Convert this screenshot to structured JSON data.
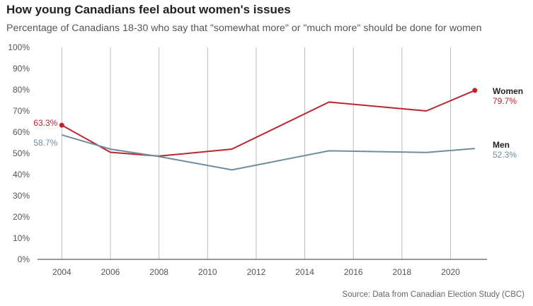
{
  "title": "How young Canadians feel about women's issues",
  "subtitle": "Percentage of Canadians 18-30 who say that \"somewhat more\" or \"much more\" should be done for women",
  "source": "Source: Data from Canadian Election Study (CBC)",
  "colors": {
    "women": "#b8262f",
    "men": "#6f8e9c",
    "grid": "#bbbbbb",
    "axis": "#333333"
  },
  "chart_data": {
    "type": "line",
    "title": "How young Canadians feel about women's issues",
    "subtitle": "Percentage of Canadians 18-30 who say that \"somewhat more\" or \"much more\" should be done for women",
    "xlim": [
      2003,
      2021.5
    ],
    "ylim": [
      0,
      100
    ],
    "x_ticks": [
      2004,
      2006,
      2008,
      2010,
      2012,
      2014,
      2016,
      2018,
      2020
    ],
    "y_ticks": [
      0,
      10,
      20,
      30,
      40,
      50,
      60,
      70,
      80,
      90,
      100
    ],
    "y_tick_labels": [
      "0%",
      "10%",
      "20%",
      "30%",
      "40%",
      "50%",
      "60%",
      "70%",
      "80%",
      "90%",
      "100%"
    ],
    "grid": "vertical",
    "series": [
      {
        "name": "Women",
        "key": "women",
        "x": [
          2004,
          2006,
          2008,
          2011,
          2015,
          2019,
          2021
        ],
        "y": [
          63.3,
          50.5,
          48.7,
          52.0,
          74.2,
          70.0,
          79.7
        ],
        "start_label": "63.3%",
        "end_label": "79.7%"
      },
      {
        "name": "Men",
        "key": "men",
        "x": [
          2004,
          2006,
          2008,
          2011,
          2015,
          2019,
          2021
        ],
        "y": [
          58.7,
          52.0,
          48.5,
          42.2,
          51.2,
          50.4,
          52.3
        ],
        "start_label": "58.7%",
        "end_label": "52.3%"
      }
    ]
  }
}
